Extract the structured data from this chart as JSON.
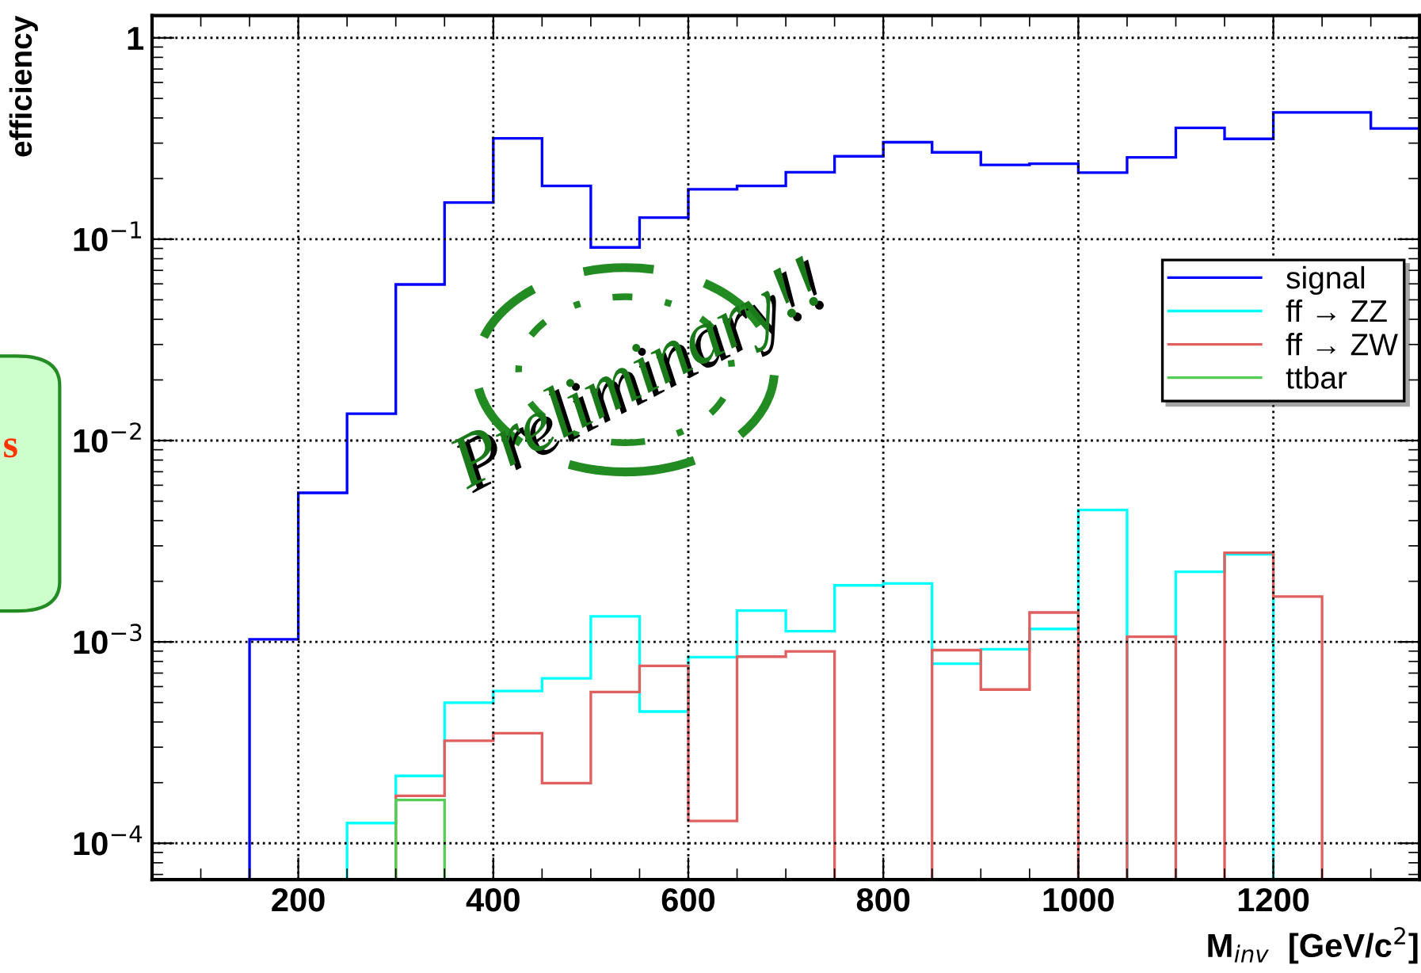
{
  "chart_data": {
    "type": "histogram",
    "xlabel": "M$_{inv}$  [GeV/c$^{2}$]",
    "ylabel": "efficiency",
    "bins": [
      50,
      100,
      150,
      200,
      250,
      300,
      350,
      400,
      450,
      500,
      550,
      600,
      650,
      700,
      750,
      800,
      850,
      900,
      950,
      1000,
      1050,
      1100,
      1150,
      1200,
      1250,
      1300,
      1350
    ],
    "series": [
      {
        "name": "signal",
        "color": "#0000ff",
        "values": [
          null,
          null,
          0.00103,
          0.0055,
          0.0136,
          0.0596,
          0.152,
          0.317,
          0.184,
          0.091,
          0.128,
          0.177,
          0.184,
          0.215,
          0.258,
          0.303,
          0.27,
          0.234,
          0.237,
          0.214,
          0.255,
          0.357,
          0.315,
          0.426,
          0.426,
          0.355
        ]
      },
      {
        "name": "ff → ZZ",
        "color": "#00ffff",
        "values": [
          null,
          null,
          null,
          null,
          0.000126,
          0.000216,
          0.000499,
          0.00057,
          0.000659,
          0.00134,
          0.000451,
          0.00084,
          0.00143,
          0.00113,
          0.00191,
          0.00195,
          0.00078,
          0.00092,
          0.00116,
          0.00452,
          null,
          0.00223,
          0.00272,
          null,
          null,
          null
        ]
      },
      {
        "name": "ff → ZW",
        "color": "#e06060",
        "values": [
          null,
          null,
          null,
          null,
          null,
          0.000172,
          0.000323,
          0.000352,
          0.000199,
          0.000564,
          0.00076,
          0.000129,
          0.000845,
          0.000897,
          null,
          null,
          0.00091,
          0.00058,
          0.0014,
          null,
          0.00106,
          null,
          0.00277,
          0.00168,
          null,
          null
        ]
      },
      {
        "name": "ttbar",
        "color": "#55cc55",
        "values": [
          null,
          null,
          null,
          null,
          null,
          0.000164,
          null,
          null,
          null,
          null,
          null,
          null,
          null,
          null,
          null,
          null,
          null,
          null,
          null,
          null,
          null,
          null,
          null,
          null,
          null,
          null
        ]
      }
    ],
    "xlim": [
      50,
      1350
    ],
    "ylim": [
      6.6e-05,
      1.29
    ],
    "log": true,
    "xticks": [
      200,
      400,
      600,
      800,
      1000,
      1200
    ],
    "yticks": [
      {
        "value": 0.0001,
        "label": "10$^{−4}$"
      },
      {
        "value": 0.001,
        "label": "10$^{−3}$"
      },
      {
        "value": 0.01,
        "label": "10$^{−2}$"
      },
      {
        "value": 0.1,
        "label": "10$^{−1}$"
      },
      {
        "value": 1,
        "label": "1"
      }
    ],
    "grid": true,
    "legend": "right",
    "annotations": [
      "Preliminary!!",
      "s"
    ]
  }
}
